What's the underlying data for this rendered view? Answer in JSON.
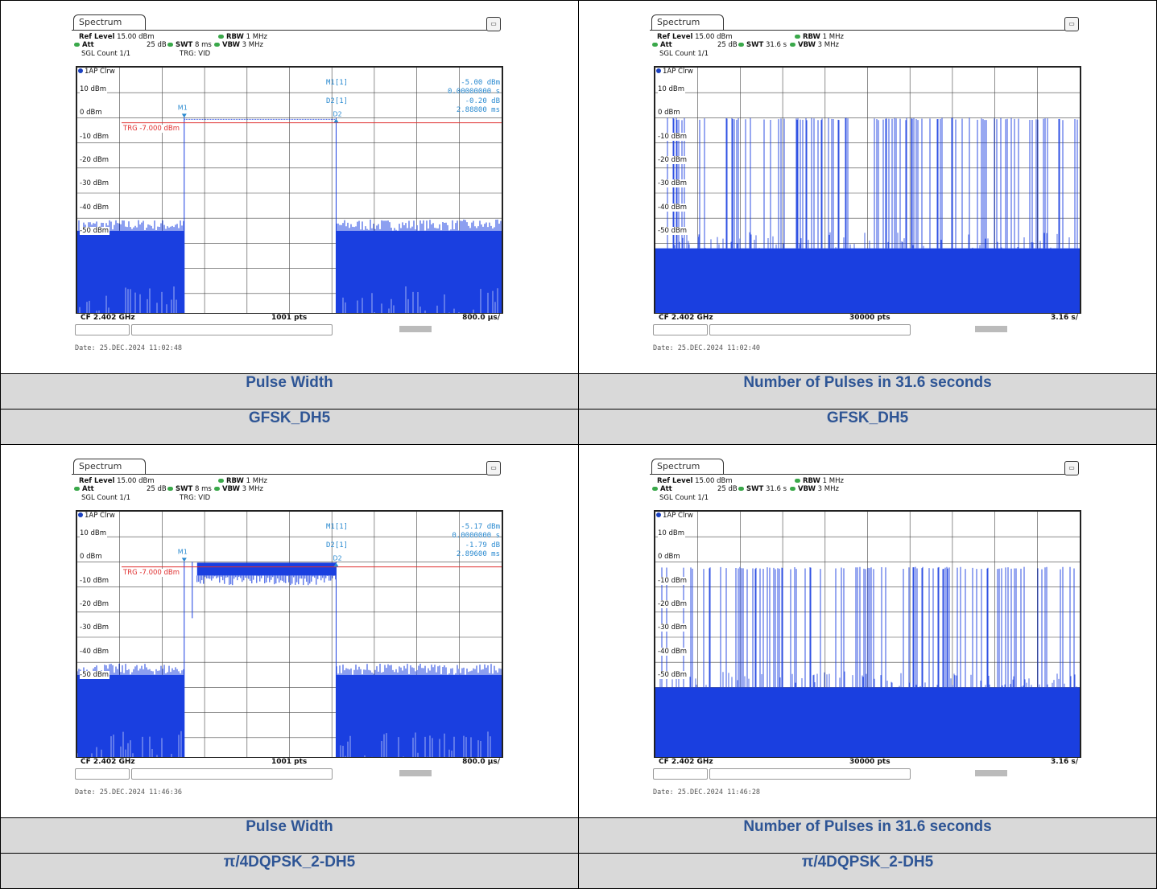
{
  "panels": [
    {
      "kind": "pulse",
      "ref_level_label": "Ref Level",
      "ref_level": "15.00 dBm",
      "att_label": "Att",
      "att": "25 dB",
      "swt_label": "SWT",
      "swt": "8 ms",
      "rbw_label": "RBW",
      "rbw": "1 MHz",
      "vbw_label": "VBW",
      "vbw": "3 MHz",
      "sgl_count": "SGL Count 1/1",
      "trg": "TRG: VID",
      "trace": "1AP Clrw",
      "tab": "Spectrum",
      "y_labels": [
        "10 dBm",
        "0 dBm",
        "-10 dBm",
        "-20 dBm",
        "-30 dBm",
        "-40 dBm",
        "-50 dBm"
      ],
      "trg_line": "TRG -7.000 dBm",
      "m1_label": "M1[1]",
      "m1_value": "-5.00 dBm",
      "m1_time": "0.00000000 s",
      "d2_label": "D2[1]",
      "d2_value": "-0.20 dB",
      "d2_time": "2.88800 ms",
      "cf": "CF 2.402 GHz",
      "pts": "1001 pts",
      "div": "800.0 µs/",
      "date": "Date: 25.DEC.2024  11:02:48",
      "on_level": -5,
      "noise_level": -55
    },
    {
      "kind": "count",
      "ref_level_label": "Ref Level",
      "ref_level": "15.00 dBm",
      "att_label": "Att",
      "att": "25 dB",
      "swt_label": "SWT",
      "swt": "31.6 s",
      "rbw_label": "RBW",
      "rbw": "1 MHz",
      "vbw_label": "VBW",
      "vbw": "3 MHz",
      "sgl_count": "SGL Count 1/1",
      "trace": "1AP Clrw",
      "tab": "Spectrum",
      "y_labels": [
        "10 dBm",
        "0 dBm",
        "-10 dBm",
        "-20 dBm",
        "-30 dBm",
        "-40 dBm",
        "-50 dBm"
      ],
      "cf": "CF 2.402 GHz",
      "pts": "30000 pts",
      "div": "3.16 s/",
      "date": "Date: 25.DEC.2024  11:02:40",
      "peak_level": -5,
      "floor_level": -57
    },
    {
      "kind": "pulse",
      "ref_level_label": "Ref Level",
      "ref_level": "15.00 dBm",
      "att_label": "Att",
      "att": "25 dB",
      "swt_label": "SWT",
      "swt": "8 ms",
      "rbw_label": "RBW",
      "rbw": "1 MHz",
      "vbw_label": "VBW",
      "vbw": "3 MHz",
      "sgl_count": "SGL Count 1/1",
      "trg": "TRG: VID",
      "trace": "1AP Clrw",
      "tab": "Spectrum",
      "y_labels": [
        "10 dBm",
        "0 dBm",
        "-10 dBm",
        "-20 dBm",
        "-30 dBm",
        "-40 dBm",
        "-50 dBm"
      ],
      "trg_line": "TRG -7.000 dBm",
      "m1_label": "M1[1]",
      "m1_value": "-5.17 dBm",
      "m1_time": "0.0000000 s",
      "d2_label": "D2[1]",
      "d2_value": "-1.79 dB",
      "d2_time": "2.89600 ms",
      "cf": "CF 2.402 GHz",
      "pts": "1001 pts",
      "div": "800.0 µs/",
      "date": "Date: 25.DEC.2024  11:46:36",
      "on_level": -5,
      "noise_level": -55
    },
    {
      "kind": "count",
      "ref_level_label": "Ref Level",
      "ref_level": "15.00 dBm",
      "att_label": "Att",
      "att": "25 dB",
      "swt_label": "SWT",
      "swt": "31.6 s",
      "rbw_label": "RBW",
      "rbw": "1 MHz",
      "vbw_label": "VBW",
      "vbw": "3 MHz",
      "sgl_count": "SGL Count 1/1",
      "trace": "1AP Clrw",
      "tab": "Spectrum",
      "y_labels": [
        "10 dBm",
        "0 dBm",
        "-10 dBm",
        "-20 dBm",
        "-30 dBm",
        "-40 dBm",
        "-50 dBm"
      ],
      "cf": "CF 2.402 GHz",
      "pts": "30000 pts",
      "div": "3.16 s/",
      "date": "Date: 25.DEC.2024  11:46:28",
      "peak_level": -7,
      "floor_level": -55
    }
  ],
  "captions": [
    {
      "line1": "Pulse Width",
      "line2": "GFSK_DH5"
    },
    {
      "line1": "Number of Pulses in 31.6 seconds",
      "line2": "GFSK_DH5"
    },
    {
      "line1": "Pulse Width",
      "line2": "π/4DQPSK_2-DH5"
    },
    {
      "line1": "Number of Pulses in 31.6 seconds",
      "line2": "π/4DQPSK_2-DH5"
    }
  ],
  "colors": {
    "trace": "#1a3fe0",
    "trigger": "#e03030",
    "marker": "#2a8ad0",
    "caption_text": "#2e5595",
    "caption_bg": "#d9d9d9"
  }
}
